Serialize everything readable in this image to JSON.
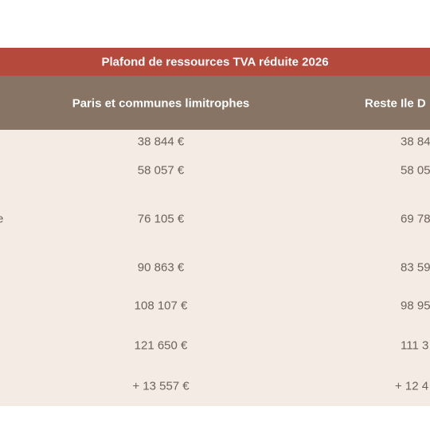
{
  "table": {
    "title": "Plafond de ressources TVA réduite 2026",
    "headers": [
      "Paris et communes limitrophes",
      "Reste Ile D"
    ],
    "rows": [
      {
        "cells": [
          "38 844 €",
          "38 84"
        ]
      },
      {
        "cells": [
          "58 057 €",
          "58 05"
        ]
      },
      {
        "label": "e",
        "cells": [
          "76 105 €",
          "69 78"
        ]
      },
      {
        "cells": [
          "90 863 €",
          "83 59"
        ]
      },
      {
        "cells": [
          "108 107 €",
          "98 95"
        ]
      },
      {
        "cells": [
          "121 650 €",
          "111 3"
        ]
      },
      {
        "cells": [
          "+ 13 557 €",
          "+ 12 4"
        ]
      }
    ]
  }
}
